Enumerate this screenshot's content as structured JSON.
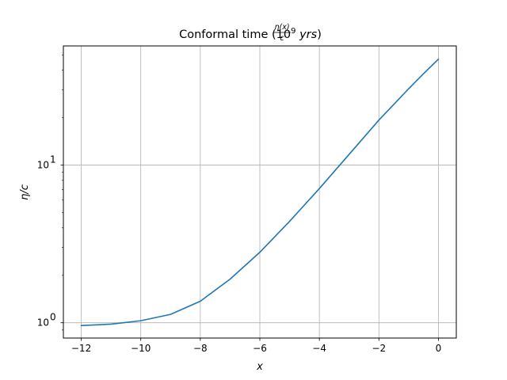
{
  "chart_data": {
    "type": "line",
    "title": {
      "prefix": "Conformal time ",
      "frac_num": "η(x)",
      "frac_den": "c",
      "open": " (10",
      "exp": "9",
      "unit": " yrs",
      "close": ")"
    },
    "xlabel": "x",
    "ylabel": "η/c",
    "xlim": [
      -12.6,
      0.6
    ],
    "ylim": [
      0.8,
      57
    ],
    "yscale": "log",
    "grid": true,
    "x_ticks": [
      -12,
      -10,
      -8,
      -6,
      -4,
      -2,
      0
    ],
    "x_tick_labels": [
      "−12",
      "−10",
      "−8",
      "−6",
      "−4",
      "−2",
      "0"
    ],
    "y_ticks": [
      1,
      10
    ],
    "y_tick_labels": [
      {
        "base": "10",
        "exp": "0"
      },
      {
        "base": "10",
        "exp": "1"
      }
    ],
    "series": [
      {
        "color": "#1f77b4",
        "x": [
          -12,
          -11,
          -10,
          -9,
          -8,
          -7,
          -6,
          -5,
          -4,
          -3,
          -2,
          -1,
          -0.5,
          0
        ],
        "y": [
          0.96,
          0.98,
          1.03,
          1.13,
          1.37,
          1.89,
          2.8,
          4.4,
          7.1,
          11.7,
          19.3,
          30.5,
          38,
          47
        ]
      }
    ]
  }
}
